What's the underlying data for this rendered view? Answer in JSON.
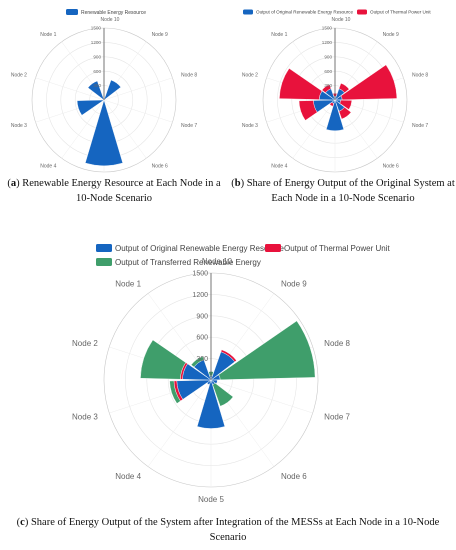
{
  "chart_data": [
    {
      "id": "a",
      "type": "polar-bar",
      "categories": [
        "Node 10",
        "Node 9",
        "Node 8",
        "Node 7",
        "Node 6",
        "Node 5",
        "Node 4",
        "Node 3",
        "Node 2",
        "Node 1"
      ],
      "radial_ticks": [
        "300",
        "600",
        "900",
        "1200",
        "1500"
      ],
      "rmax": 1500,
      "series": [
        {
          "name": "Renewable Energy Resource",
          "color": "#1565c0",
          "values": [
            0,
            440,
            0,
            0,
            0,
            1370,
            0,
            560,
            0,
            420
          ]
        }
      ],
      "caption": {
        "label": "a",
        "text": "Renewable Energy Resource at Each Node in a 10-Node Scenario"
      }
    },
    {
      "id": "b",
      "type": "polar-bar-stacked",
      "categories": [
        "Node 10",
        "Node 9",
        "Node 8",
        "Node 7",
        "Node 6",
        "Node 5",
        "Node 4",
        "Node 3",
        "Node 2",
        "Node 1"
      ],
      "radial_ticks": [
        "300",
        "600",
        "900",
        "1200",
        "1500"
      ],
      "rmax": 1500,
      "series": [
        {
          "name": "Output of Original Renewable Energy Resource",
          "color": "#1565c0",
          "values": [
            80,
            250,
            150,
            120,
            250,
            640,
            80,
            450,
            330,
            250
          ]
        },
        {
          "name": "Output of Thermal Power Unit",
          "color": "#e8123c",
          "values": [
            60,
            120,
            1140,
            230,
            170,
            0,
            60,
            300,
            830,
            90
          ]
        }
      ],
      "caption": {
        "label": "b",
        "text": "Share of Energy Output of the Original System at Each Node in a 10-Node Scenario"
      }
    },
    {
      "id": "c",
      "type": "polar-bar-stacked",
      "categories": [
        "Node 10",
        "Node 9",
        "Node 8",
        "Node 7",
        "Node 6",
        "Node 5",
        "Node 4",
        "Node 3",
        "Node 2",
        "Node 1"
      ],
      "radial_ticks": [
        "300",
        "600",
        "900",
        "1200",
        "1500"
      ],
      "rmax": 1500,
      "series": [
        {
          "name": "Output of Original Renewable Energy Resource",
          "color": "#1565c0",
          "values": [
            60,
            420,
            130,
            90,
            70,
            680,
            70,
            480,
            400,
            300
          ]
        },
        {
          "name": "Output of Thermal Power Unit",
          "color": "#e8123c",
          "values": [
            0,
            30,
            0,
            0,
            0,
            0,
            0,
            40,
            30,
            0
          ]
        },
        {
          "name": "Output of Transferred Renewable Energy",
          "color": "#3f9e6b",
          "values": [
            60,
            0,
            1330,
            0,
            320,
            0,
            0,
            60,
            560,
            50
          ]
        }
      ],
      "caption": {
        "label": "c",
        "text": "Share of Energy Output of the System after Integration of the MESSs at Each Node in a 10-Node Scenario"
      }
    }
  ]
}
